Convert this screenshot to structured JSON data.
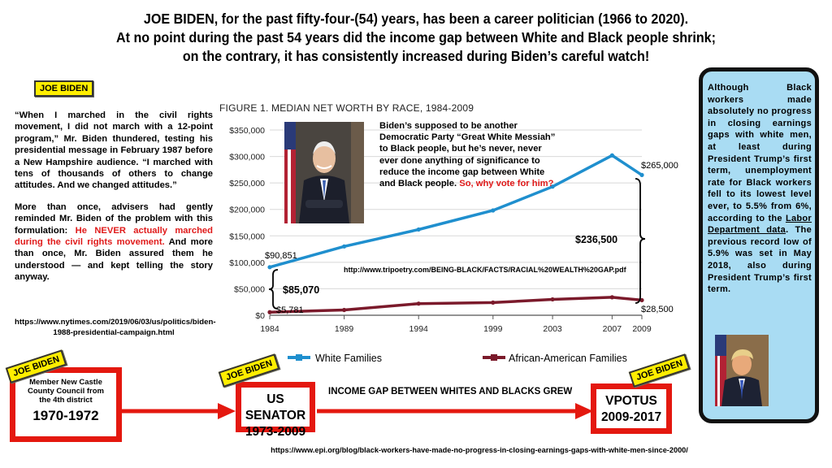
{
  "headline": {
    "line1": "JOE BIDEN, for the past fifty-four-(54) years, has been a career politician (1966 to 2020).",
    "line2": "At no point during the past 54 years did the income gap between White and Black people shrink;",
    "line3": "on the contrary, it has consistently increased during Biden’s careful watch!"
  },
  "tag_label": "JOE BIDEN",
  "quote": {
    "p1": "“When I marched in the civil rights movement, I did not march with a 12-point program,” Mr. Biden thundered, testing his presidential message in February 1987 before a New Hampshire audience. “I marched with tens of thousands of others to change attitudes. And we changed attitudes.”",
    "p2_start": "More than once, advisers had gently reminded Mr. Biden of the problem with this formulation: ",
    "p2_red": "He NEVER actually marched during the civil rights movement.",
    "p2_end": " And more than once, Mr. Biden assured them he understood — and kept telling the story anyway.",
    "link": "https://www.nytimes.com/2019/06/03/us/politics/biden-1988-presidential-campaign.html"
  },
  "chart_data": {
    "type": "line",
    "title": "FIGURE 1. MEDIAN NET WORTH BY RACE, 1984-2009",
    "x": [
      1984,
      1989,
      1994,
      1999,
      2003,
      2007,
      2009
    ],
    "series": [
      {
        "name": "White Families",
        "color": "#1f8fce",
        "values": [
          90851,
          130000,
          162000,
          198000,
          243000,
          302000,
          265000
        ]
      },
      {
        "name": "African-American Families",
        "color": "#7b1a2b",
        "values": [
          5781,
          10000,
          22000,
          24000,
          30000,
          34000,
          28500
        ]
      }
    ],
    "ylim": [
      0,
      350000
    ],
    "yticks": [
      "$0",
      "$50,000",
      "$100,000",
      "$150,000",
      "$200,000",
      "$250,000",
      "$300,000",
      "$350,000"
    ],
    "xticks": [
      "1984",
      "1989",
      "1994",
      "1999",
      "2003",
      "2007",
      "2009"
    ],
    "data_labels": {
      "w_start": "$90,851",
      "w_end": "$265,000",
      "b_start": "$5,781",
      "b_end": "$28,500"
    },
    "gap_labels": {
      "start": "$85,070",
      "end": "$236,500"
    },
    "legend_position": "bottom"
  },
  "bubble": {
    "text": "Biden’s supposed to be another Democratic Party “Great White Messiah” to Black people, but he’s never, never ever done anything of significance to reduce the income gap between White and Black people. ",
    "question": "So, why vote for him?"
  },
  "chart_source_url": "http://www.tripoetry.com/BEING-BLACK/FACTS/RACIAL%20WEALTH%20GAP.pdf",
  "right_panel": {
    "part1": "Although Black workers made absolutely no progress in closing earnings gaps with white men, at least during President Trump’s first term, unemployment rate for Black workers fell to its lowest level ever, to 5.5% from 6%, according to the ",
    "link_text": "Labor Department data",
    "part2": ". The previous record low of 5.9% was set in May 2018, also during President Trump’s first term."
  },
  "timeline": {
    "box1_small": "Member New Castle County Council from the 4th district",
    "box1_years": "1970-1972",
    "box2_title": "US SENATOR",
    "box2_years": "1973-2009",
    "box3_title": "VPOTUS",
    "box3_years": "2009-2017",
    "gap_text": "INCOME GAP BETWEEN WHITES AND BLACKS GREW"
  },
  "bottom_link": "https://www.epi.org/blog/black-workers-have-made-no-progress-in-closing-earnings-gaps-with-white-men-since-2000/",
  "colors": {
    "accent_red": "#e4180f",
    "tag_yellow": "#ffee00",
    "panel_blue": "#a9dcf3"
  }
}
